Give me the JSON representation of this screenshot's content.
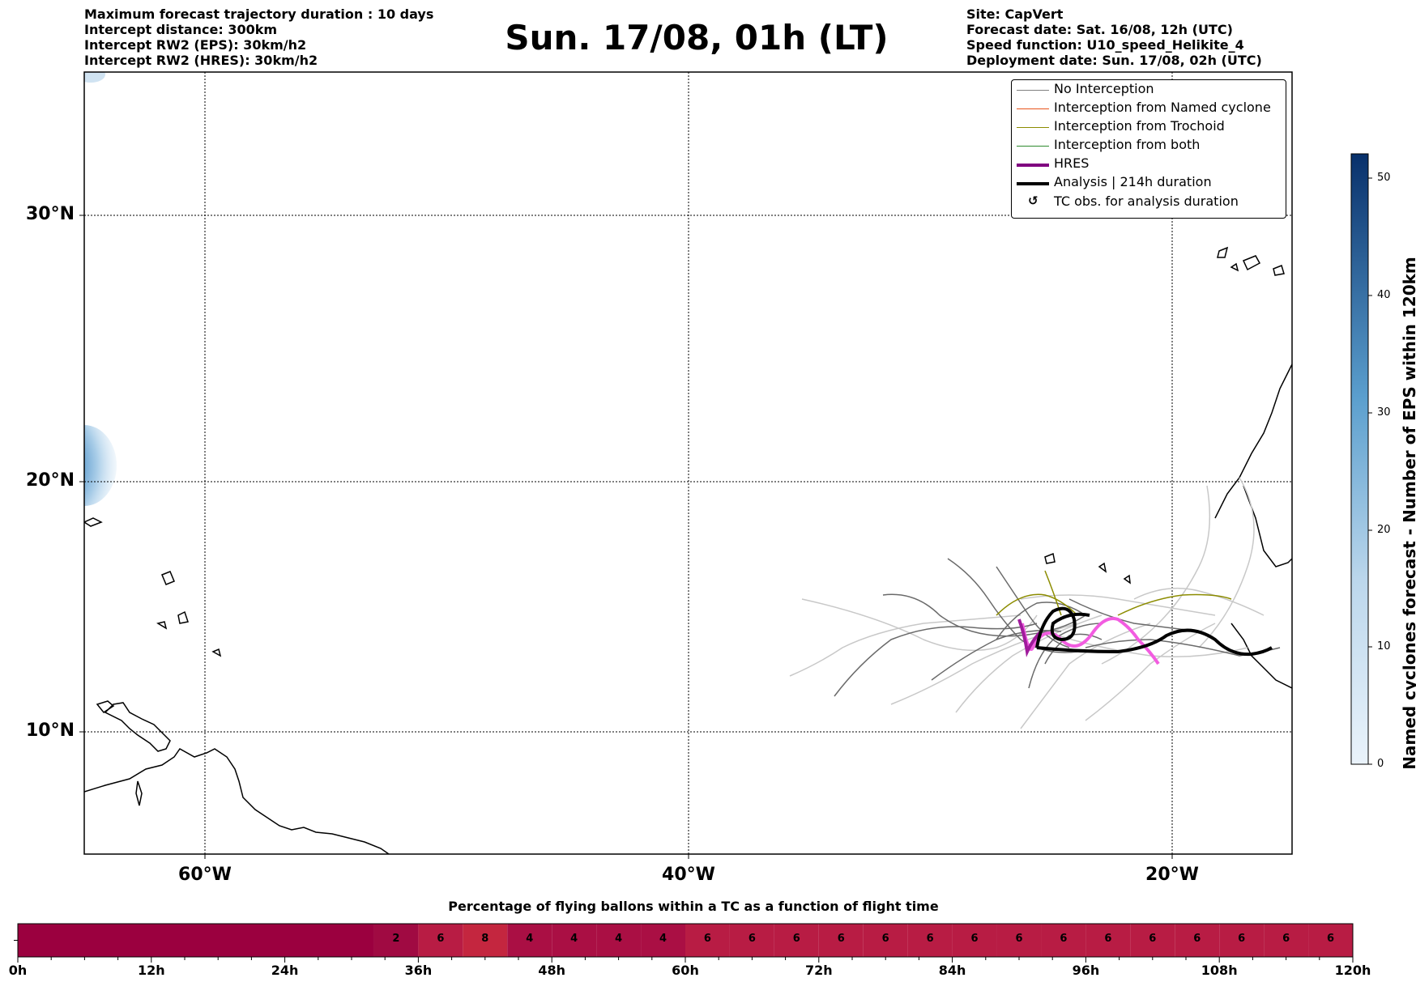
{
  "header_left": [
    "Maximum forecast trajectory duration : 10 days",
    "Intercept distance: 300km",
    "Intercept RW2 (EPS):  30km/h2",
    "Intercept RW2 (HRES): 30km/h2"
  ],
  "header_right": [
    "Site: CapVert",
    "Forecast date: Sat. 16/08, 12h (UTC)",
    "Speed function: U10_speed_Helikite_4",
    "Deployment date: Sun. 17/08, 02h (UTC)"
  ],
  "title": "Sun. 17/08, 01h (LT)",
  "map": {
    "lon_labels": [
      "60°W",
      "40°W",
      "20°W"
    ],
    "lat_labels": [
      "30°N",
      "20°N",
      "10°N"
    ],
    "gridlines": "dotted"
  },
  "legend": [
    {
      "label": "No Interception",
      "color": "#808080"
    },
    {
      "label": "Interception from Named cyclone",
      "color": "#e8541c"
    },
    {
      "label": "Interception from Trochoid",
      "color": "#8c8c00"
    },
    {
      "label": "Interception from both",
      "color": "#2e8b2e"
    },
    {
      "label": "HRES",
      "color": "#800080"
    },
    {
      "label": "Analysis | 214h duration",
      "color": "#000000"
    },
    {
      "label": "TC obs. for analysis duration",
      "icon": "cyclone-symbol-icon"
    }
  ],
  "colorbar": {
    "label": "Named cyclones forecast - Number of EPS within 120km",
    "ticks": [
      "0",
      "10",
      "20",
      "30",
      "40",
      "50"
    ],
    "min_color": "#eaf3fb",
    "max_color": "#08306b"
  },
  "bar": {
    "title": "Percentage of flying ballons within a TC as a function of flight time",
    "time_labels": [
      "0h",
      "12h",
      "24h",
      "36h",
      "48h",
      "60h",
      "72h",
      "84h",
      "96h",
      "108h",
      "120h"
    ],
    "empty_color": "#9b003f",
    "cells": [
      "2",
      "6",
      "8",
      "4",
      "4",
      "4",
      "4",
      "6",
      "6",
      "6",
      "6",
      "6",
      "6",
      "6",
      "6",
      "6",
      "6",
      "6",
      "6",
      "6",
      "6",
      "6"
    ]
  }
}
